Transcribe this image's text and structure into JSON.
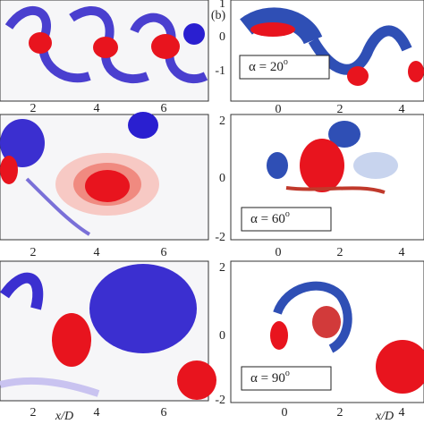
{
  "panel_label": "(b)",
  "left": {
    "rows": [
      {
        "x_ticks": [
          "2",
          "4",
          "6"
        ]
      },
      {
        "x_ticks": [
          "2",
          "4",
          "6"
        ]
      },
      {
        "x_ticks": [
          "2",
          "4",
          "6"
        ]
      }
    ],
    "x_label": "x/D"
  },
  "right": {
    "rows": [
      {
        "y_ticks": [
          "1",
          "0",
          "-1"
        ],
        "x_ticks": [
          "0",
          "2",
          "4"
        ],
        "annotation": "α = 20",
        "annotation_sup": "o"
      },
      {
        "y_ticks": [
          "2",
          "0",
          "-2"
        ],
        "x_ticks": [
          "0",
          "2",
          "4"
        ],
        "annotation": "α = 60",
        "annotation_sup": "o"
      },
      {
        "y_ticks": [
          "2",
          "0",
          "-2"
        ],
        "x_ticks": [
          "0",
          "2",
          "4"
        ],
        "annotation": "α = 90",
        "annotation_sup": "o"
      }
    ],
    "x_label": "x/D"
  }
}
